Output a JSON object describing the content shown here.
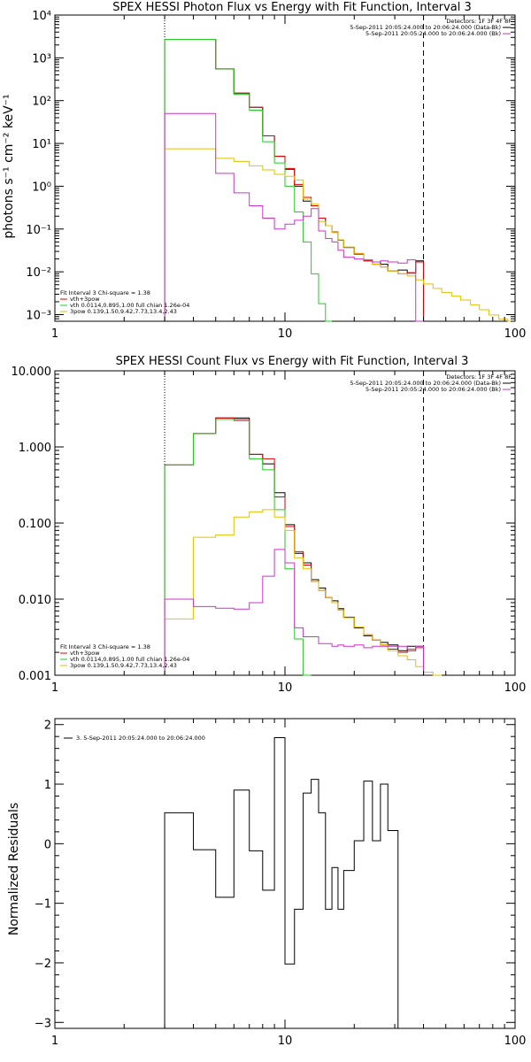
{
  "colors": {
    "black": "#000000",
    "red": "#e00000",
    "green": "#22cc22",
    "yellow": "#e6c000",
    "magenta": "#cc33cc"
  },
  "chart_data": [
    {
      "type": "line",
      "id": "photon",
      "title": "SPEX HESSI Photon Flux vs Energy with Fit Function, Interval 3",
      "ylabel": "photons s⁻¹ cm⁻² keV⁻¹",
      "xscale": "log",
      "yscale": "log",
      "xlim": [
        1,
        100
      ],
      "ylim": [
        0.0007,
        10000
      ],
      "xticks": [
        1,
        10,
        100
      ],
      "xtick_labels": [
        "1",
        "10",
        "100"
      ],
      "yticks": [
        0.001,
        0.01,
        0.1,
        1,
        10,
        100,
        1000,
        10000
      ],
      "ytick_labels": [
        "10⁻³",
        "10⁻²",
        "10⁻¹",
        "10⁰",
        "10¹",
        "10²",
        "10³",
        "10⁴"
      ],
      "vlines": [
        {
          "x": 3,
          "style": "dotted"
        },
        {
          "x": 40,
          "style": "dashed"
        }
      ],
      "legend_topright": [
        {
          "text": "Detectors: 1F 3F 4F 8F",
          "color": "#000000"
        },
        {
          "text": "5-Sep-2011 20:05:24.000 to 20:06:24.000 (Data-Bk)",
          "color": "#000000"
        },
        {
          "text": "5-Sep-2011 20:05:24.000 to 20:06:24.000 (Bk)",
          "color": "#cc33cc"
        }
      ],
      "legend_bottomleft": [
        {
          "text": "Fit Interval 3   Chi-square = 1.38",
          "color": "#000000"
        },
        {
          "text": "vth+3pow",
          "color": "#e00000"
        },
        {
          "text": "vth 0.0114,0.895,1.00  full chian 1.26e-04",
          "color": "#22cc22"
        },
        {
          "text": "3pow 0.139,1.50,9.42,7.73,13.4,2.43",
          "color": "#e6c000"
        }
      ],
      "bin_edges": [
        3,
        4,
        5,
        6,
        7,
        8,
        9,
        10,
        11,
        12,
        13,
        14,
        15,
        16,
        17,
        18,
        20,
        22,
        24,
        26,
        28,
        31,
        34,
        37,
        40,
        44,
        48,
        53,
        58,
        64,
        70,
        77,
        85,
        93,
        100
      ],
      "series": [
        {
          "name": "Data-Bk",
          "color": "#000000",
          "start": 3,
          "values": [
            2700,
            2700,
            550,
            150,
            70,
            15,
            5,
            2.5,
            1.0,
            0.45,
            0.35,
            0.18,
            0.12,
            0.085,
            0.055,
            0.037,
            0.026,
            0.018,
            0.017,
            0.015,
            0.0105,
            0.011,
            0.0095,
            0.018
          ]
        },
        {
          "name": "vth+3pow",
          "color": "#e00000",
          "start": 3,
          "values": [
            2700,
            2700,
            550,
            150,
            70,
            15,
            5,
            2.6,
            1.1,
            0.55,
            0.35,
            0.18,
            0.12,
            0.085,
            0.055,
            0.037,
            0.026,
            0.018,
            0.015,
            0.013,
            0.0105,
            0.009,
            0.0095,
            0.017
          ]
        },
        {
          "name": "vth",
          "color": "#22cc22",
          "start": 3,
          "values": [
            2700,
            2700,
            550,
            140,
            60,
            11,
            3.5,
            1.0,
            0.25,
            0.05,
            0.009,
            0.0018,
            0.0003
          ]
        },
        {
          "name": "3pow",
          "color": "#e6c000",
          "start": 3,
          "values": [
            7.5,
            7.5,
            4.5,
            3.8,
            3.0,
            2.4,
            1.9,
            1.7,
            1.4,
            0.5,
            0.38,
            0.15,
            0.12,
            0.083,
            0.056,
            0.038,
            0.027,
            0.019,
            0.015,
            0.013,
            0.0105,
            0.009,
            0.008,
            0.0065,
            0.0052,
            0.0041,
            0.0033,
            0.0027,
            0.0022,
            0.0017,
            0.0013,
            0.00098,
            0.00078,
            0.0006
          ]
        },
        {
          "name": "Bk",
          "color": "#cc33cc",
          "start": 3,
          "values": [
            50,
            50,
            2.0,
            0.7,
            0.35,
            0.18,
            0.1,
            0.13,
            0.16,
            0.2,
            0.3,
            0.09,
            0.06,
            0.05,
            0.032,
            0.022,
            0.02,
            0.019,
            0.017,
            0.018,
            0.017,
            0.016,
            0.019,
            0.0005
          ]
        }
      ]
    },
    {
      "type": "line",
      "id": "count",
      "title": "SPEX HESSI Count Flux vs Energy with Fit Function, Interval 3",
      "xscale": "log",
      "yscale": "log",
      "xlim": [
        1,
        100
      ],
      "ylim": [
        0.001,
        10
      ],
      "xticks": [
        1,
        10,
        100
      ],
      "xtick_labels": [
        "1",
        "10",
        "100"
      ],
      "yticks": [
        0.001,
        0.01,
        0.1,
        1,
        10
      ],
      "ytick_labels": [
        "0.001",
        "0.010",
        "0.100",
        "1.000",
        "10.000"
      ],
      "vlines": [
        {
          "x": 3,
          "style": "dotted"
        },
        {
          "x": 40,
          "style": "dashed"
        }
      ],
      "legend_topright": [
        {
          "text": "Detectors: 1F 3F 4F 8F",
          "color": "#000000"
        },
        {
          "text": "5-Sep-2011 20:05:24.000 to 20:06:24.000 (Data-Bk)",
          "color": "#000000"
        },
        {
          "text": "5-Sep-2011 20:05:24.000 to 20:06:24.000 (Bk)",
          "color": "#cc33cc"
        }
      ],
      "legend_bottomleft": [
        {
          "text": "Fit Interval 3   Chi-square = 1.38",
          "color": "#000000"
        },
        {
          "text": "vth+3pow",
          "color": "#e00000"
        },
        {
          "text": "vth 0.0114,0.895,1.00  full chian 1.26e-04",
          "color": "#22cc22"
        },
        {
          "text": "3pow 0.139,1.50,9.42,7.73,13.4,2.43",
          "color": "#e6c000"
        }
      ],
      "bin_edges": [
        3,
        4,
        5,
        6,
        7,
        8,
        9,
        10,
        11,
        12,
        13,
        14,
        15,
        16,
        17,
        18,
        20,
        22,
        24,
        26,
        28,
        31,
        34,
        37,
        40,
        44,
        48,
        53,
        58,
        64,
        70,
        77,
        85,
        93,
        100
      ],
      "series": [
        {
          "name": "Data-Bk",
          "color": "#000000",
          "start": 3,
          "values": [
            0.58,
            1.5,
            2.4,
            2.4,
            0.8,
            0.6,
            0.25,
            0.095,
            0.04,
            0.03,
            0.018,
            0.014,
            0.0105,
            0.0095,
            0.0075,
            0.0058,
            0.0042,
            0.0033,
            0.0029,
            0.0027,
            0.0025,
            0.0021,
            0.0024,
            0.0024
          ]
        },
        {
          "name": "vth+3pow",
          "color": "#e00000",
          "start": 3,
          "values": [
            0.58,
            1.5,
            2.4,
            2.3,
            0.8,
            0.7,
            0.22,
            0.09,
            0.042,
            0.028,
            0.017,
            0.013,
            0.0105,
            0.009,
            0.0072,
            0.0057,
            0.0043,
            0.0034,
            0.0029,
            0.0025,
            0.0022,
            0.002,
            0.0021,
            0.0023
          ]
        },
        {
          "name": "vth",
          "color": "#22cc22",
          "start": 3,
          "values": [
            0.58,
            1.5,
            2.3,
            2.2,
            0.7,
            0.5,
            0.15,
            0.025,
            0.003,
            0.0005
          ]
        },
        {
          "name": "3pow",
          "color": "#e6c000",
          "start": 3,
          "values": [
            0.0055,
            0.065,
            0.07,
            0.12,
            0.14,
            0.15,
            0.12,
            0.08,
            0.035,
            0.025,
            0.017,
            0.013,
            0.0105,
            0.009,
            0.0072,
            0.0057,
            0.0043,
            0.0034,
            0.0029,
            0.0025,
            0.0021,
            0.0018,
            0.0016,
            0.0013,
            0.0011,
            0.0009
          ]
        },
        {
          "name": "Bk",
          "color": "#cc33cc",
          "start": 3,
          "values": [
            0.01,
            0.008,
            0.0076,
            0.0074,
            0.009,
            0.02,
            0.045,
            0.03,
            0.0042,
            0.0032,
            0.0032,
            0.0026,
            0.0026,
            0.0024,
            0.0025,
            0.0024,
            0.0025,
            0.0023,
            0.0024,
            0.0024,
            0.0024,
            0.0024,
            0.0022,
            0.0024
          ]
        }
      ]
    },
    {
      "type": "line",
      "id": "resid",
      "ylabel": "Normalized Residuals",
      "xscale": "log",
      "yscale": "linear",
      "xlim": [
        1,
        100
      ],
      "ylim": [
        -3.1,
        2.1
      ],
      "xticks": [
        1,
        10,
        100
      ],
      "xtick_labels": [
        "1",
        "10",
        "100"
      ],
      "yticks": [
        -3,
        -2,
        -1,
        0,
        1,
        2
      ],
      "ytick_labels": [
        "−3",
        "−2",
        "−1",
        "0",
        "1",
        "2"
      ],
      "legend_topleft": [
        {
          "text": "3.  5-Sep-2011 20:05:24.000 to 20:06:24.000",
          "color": "#000000"
        }
      ],
      "bin_edges": [
        3,
        4,
        5,
        6,
        7,
        8,
        9,
        10,
        11,
        12,
        13,
        14,
        15,
        16,
        17,
        18,
        20,
        22,
        24,
        26,
        28,
        31,
        34,
        37,
        40
      ],
      "series": [
        {
          "name": "",
          "color": "#000000",
          "start": 3,
          "drop_to": -3.1,
          "values": [
            0.52,
            -0.1,
            -0.9,
            0.9,
            -0.12,
            -0.78,
            1.78,
            -2.02,
            -1.1,
            0.85,
            1.08,
            0.52,
            -1.1,
            -0.4,
            -1.1,
            -0.45,
            0.05,
            1.05,
            0.05,
            1.0,
            0.22
          ]
        }
      ]
    }
  ]
}
